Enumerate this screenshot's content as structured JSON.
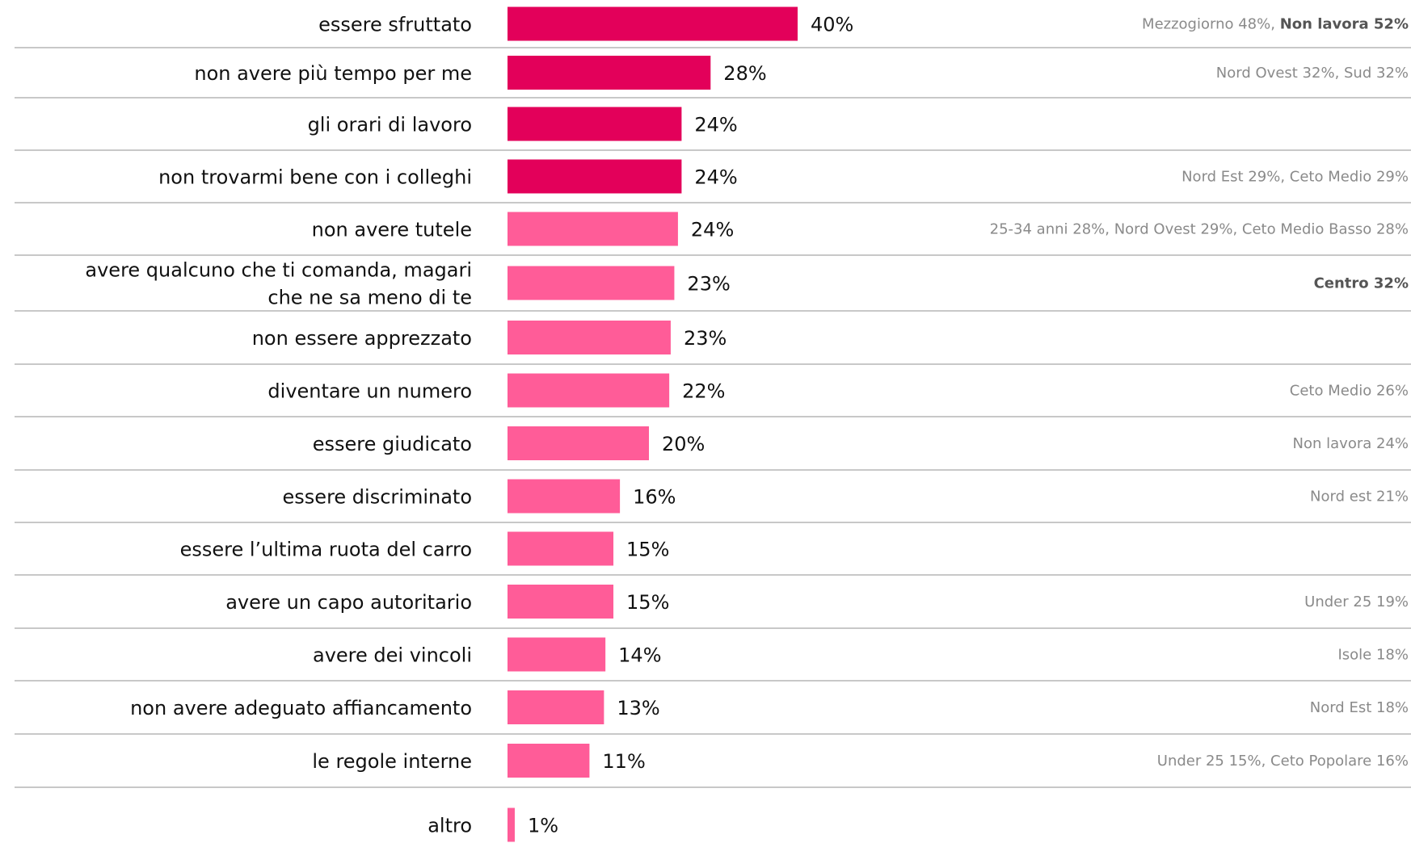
{
  "chart_data": {
    "type": "bar",
    "orientation": "horizontal",
    "colors": {
      "highlight": "#e3005a",
      "regular": "#ff5c98"
    },
    "xlim": [
      0,
      40
    ],
    "rows": [
      {
        "category": "essere sfruttato",
        "value": 40,
        "value_label": "40%",
        "highlight": true,
        "note": [
          {
            "text": "Mezzogiorno 48%, ",
            "bold": false
          },
          {
            "text": "Non lavora 52%",
            "bold": true
          }
        ]
      },
      {
        "category": "non avere più tempo per me",
        "value": 28,
        "value_label": "28%",
        "highlight": true,
        "note": [
          {
            "text": "Nord Ovest 32%, Sud 32%",
            "bold": false
          }
        ]
      },
      {
        "category": "gli orari di lavoro",
        "value": 24,
        "value_label": "24%",
        "highlight": true,
        "note": []
      },
      {
        "category": "non trovarmi bene con i colleghi",
        "value": 24,
        "value_label": "24%",
        "highlight": true,
        "note": [
          {
            "text": "Nord Est 29%, Ceto Medio 29%",
            "bold": false
          }
        ]
      },
      {
        "category": "non avere tutele",
        "value": 23.5,
        "value_label": "24%",
        "highlight": false,
        "note": [
          {
            "text": "25-34 anni 28%, Nord Ovest 29%, Ceto Medio Basso 28%",
            "bold": false
          }
        ]
      },
      {
        "category": [
          "avere qualcuno che ti comanda, magari",
          "che ne sa meno di te"
        ],
        "value": 23,
        "value_label": "23%",
        "highlight": false,
        "note": [
          {
            "text": "Centro 32%",
            "bold": true
          }
        ]
      },
      {
        "category": "non essere apprezzato",
        "value": 22.5,
        "value_label": "23%",
        "highlight": false,
        "note": []
      },
      {
        "category": "diventare un numero",
        "value": 22.3,
        "value_label": "22%",
        "highlight": false,
        "note": [
          {
            "text": "Ceto Medio 26%",
            "bold": false
          }
        ]
      },
      {
        "category": "essere giudicato",
        "value": 19.5,
        "value_label": "20%",
        "highlight": false,
        "note": [
          {
            "text": "Non lavora 24%",
            "bold": false
          }
        ]
      },
      {
        "category": "essere discriminato",
        "value": 15.5,
        "value_label": "16%",
        "highlight": false,
        "note": [
          {
            "text": "Nord est 21%",
            "bold": false
          }
        ]
      },
      {
        "category": "essere l’ultima ruota del carro",
        "value": 14.6,
        "value_label": "15%",
        "highlight": false,
        "note": []
      },
      {
        "category": "avere un capo autoritario",
        "value": 14.6,
        "value_label": "15%",
        "highlight": false,
        "note": [
          {
            "text": "Under 25 19%",
            "bold": false
          }
        ]
      },
      {
        "category": "avere dei vincoli",
        "value": 13.5,
        "value_label": "14%",
        "highlight": false,
        "note": [
          {
            "text": "Isole 18%",
            "bold": false
          }
        ]
      },
      {
        "category": "non avere adeguato affiancamento",
        "value": 13.3,
        "value_label": "13%",
        "highlight": false,
        "note": [
          {
            "text": "Nord Est 18%",
            "bold": false
          }
        ]
      },
      {
        "category": "le regole interne",
        "value": 11.3,
        "value_label": "11%",
        "highlight": false,
        "note": [
          {
            "text": "Under 25 15%, Ceto Popolare 16%",
            "bold": false
          }
        ]
      },
      {
        "category": "altro",
        "value": 1,
        "value_label": "1%",
        "highlight": false,
        "note": []
      }
    ]
  }
}
